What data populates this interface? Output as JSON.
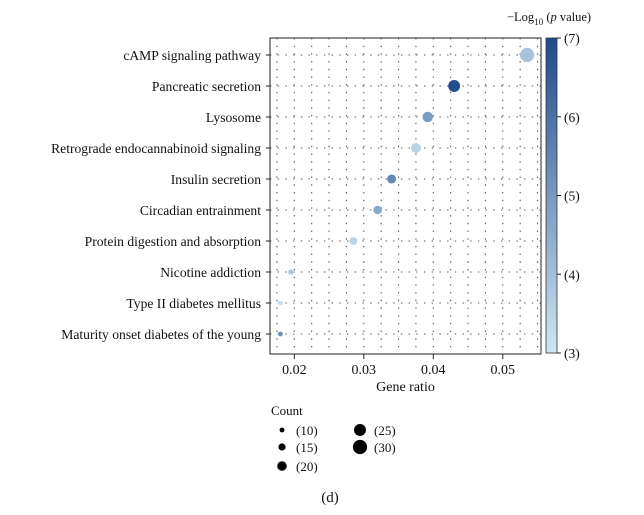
{
  "chart_data": {
    "type": "scatter",
    "xlabel": "Gene ratio",
    "caption": "(d)",
    "xlim": [
      0.0165,
      0.0555
    ],
    "x_ticks": [
      0.02,
      0.03,
      0.04,
      0.05
    ],
    "x_tick_labels": [
      "0.02",
      "0.03",
      "0.04",
      "0.05"
    ],
    "grid": true,
    "categories": [
      "cAMP signaling pathway",
      "Pancreatic secretion",
      "Lysosome",
      "Retrograde endocannabinoid signaling",
      "Insulin secretion",
      "Circadian entrainment",
      "Protein digestion and absorption",
      "Nicotine addiction",
      "Type II diabetes mellitus",
      "Maturity onset diabetes of the young"
    ],
    "points": [
      {
        "term": "cAMP signaling pathway",
        "gene_ratio": 0.0535,
        "count": 30,
        "neg_log10_p": 3.9
      },
      {
        "term": "Pancreatic secretion",
        "gene_ratio": 0.043,
        "count": 25,
        "neg_log10_p": 6.9
      },
      {
        "term": "Lysosome",
        "gene_ratio": 0.0392,
        "count": 22,
        "neg_log10_p": 4.9
      },
      {
        "term": "Retrograde endocannabinoid signaling",
        "gene_ratio": 0.0375,
        "count": 21,
        "neg_log10_p": 3.5
      },
      {
        "term": "Insulin secretion",
        "gene_ratio": 0.034,
        "count": 19,
        "neg_log10_p": 5.4
      },
      {
        "term": "Circadian entrainment",
        "gene_ratio": 0.032,
        "count": 18,
        "neg_log10_p": 4.6
      },
      {
        "term": "Protein digestion and absorption",
        "gene_ratio": 0.0285,
        "count": 16,
        "neg_log10_p": 3.5
      },
      {
        "term": "Nicotine addiction",
        "gene_ratio": 0.0195,
        "count": 11,
        "neg_log10_p": 3.8
      },
      {
        "term": "Type II diabetes mellitus",
        "gene_ratio": 0.018,
        "count": 10,
        "neg_log10_p": 3.2
      },
      {
        "term": "Maturity onset diabetes of the young",
        "gene_ratio": 0.018,
        "count": 10,
        "neg_log10_p": 5.2
      }
    ],
    "color_scale": {
      "title_prefix": "−Log",
      "title_subscript": "10",
      "title_suffix": " (",
      "title_p": "p",
      "title_end": " value)",
      "min": 3,
      "max": 7,
      "ticks": [
        3,
        4,
        5,
        6,
        7
      ],
      "tick_labels": [
        "(3)",
        "(4)",
        "(5)",
        "(6)",
        "(7)"
      ],
      "low_color": "#cfe6f3",
      "high_color": "#1f4b8c"
    },
    "size_legend": {
      "title": "Count",
      "color": "#000000",
      "entries": [
        {
          "count": 10,
          "label": "(10)"
        },
        {
          "count": 15,
          "label": "(15)"
        },
        {
          "count": 20,
          "label": "(20)"
        },
        {
          "count": 25,
          "label": "(25)"
        },
        {
          "count": 30,
          "label": "(30)"
        }
      ]
    }
  }
}
